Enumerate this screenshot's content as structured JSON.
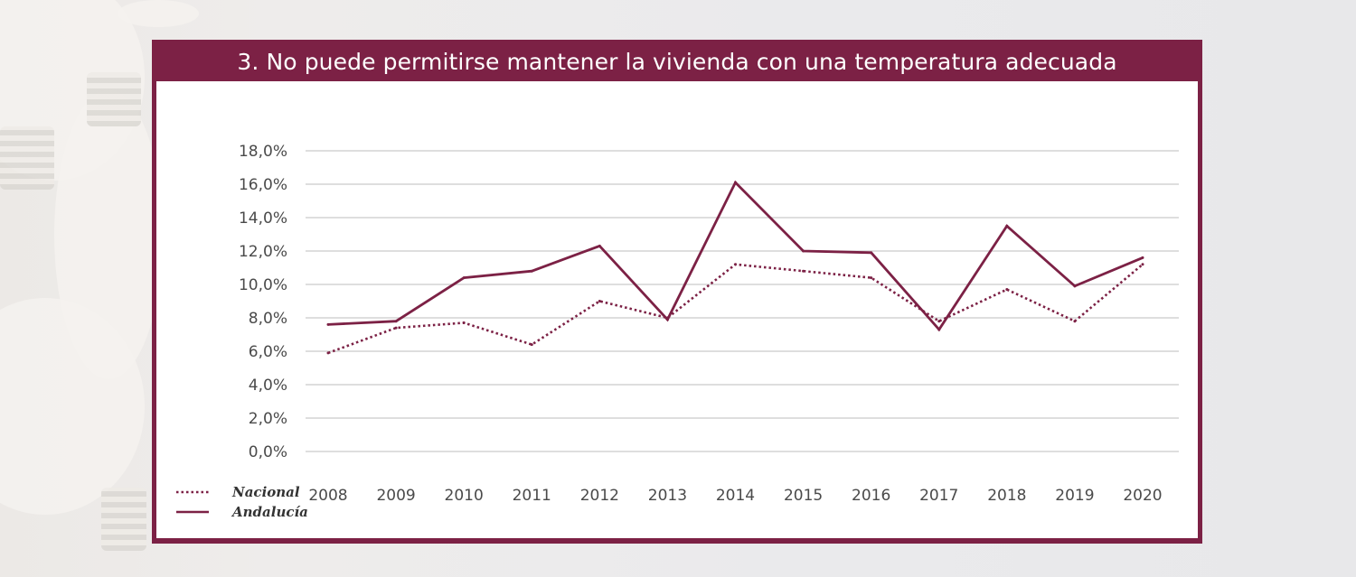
{
  "chart_data": {
    "type": "line",
    "title": "3. No puede permitirse mantener la vivienda con una temperatura adecuada",
    "x": [
      "2008",
      "2009",
      "2010",
      "2011",
      "2012",
      "2013",
      "2014",
      "2015",
      "2016",
      "2017",
      "2018",
      "2019",
      "2020"
    ],
    "series": [
      {
        "name": "Nacional",
        "style": "dotted",
        "color": "#7c2145",
        "values": [
          5.9,
          7.4,
          7.7,
          6.4,
          9.0,
          8.0,
          11.2,
          10.8,
          10.4,
          7.8,
          9.7,
          7.8,
          11.2
        ]
      },
      {
        "name": "Andalucía",
        "style": "solid",
        "color": "#7c2145",
        "values": [
          7.6,
          7.8,
          10.4,
          10.8,
          12.3,
          7.9,
          16.1,
          12.0,
          11.9,
          7.3,
          13.5,
          9.9,
          11.6
        ]
      }
    ],
    "yticks": [
      "0,0%",
      "2,0%",
      "4,0%",
      "6,0%",
      "8,0%",
      "10,0%",
      "12,0%",
      "14,0%",
      "16,0%",
      "18,0%"
    ],
    "ylim": [
      0,
      18
    ],
    "grid": true,
    "legend_position": "bottom-left"
  },
  "colors": {
    "accent": "#7c2145",
    "grid": "#d4d4d4"
  }
}
